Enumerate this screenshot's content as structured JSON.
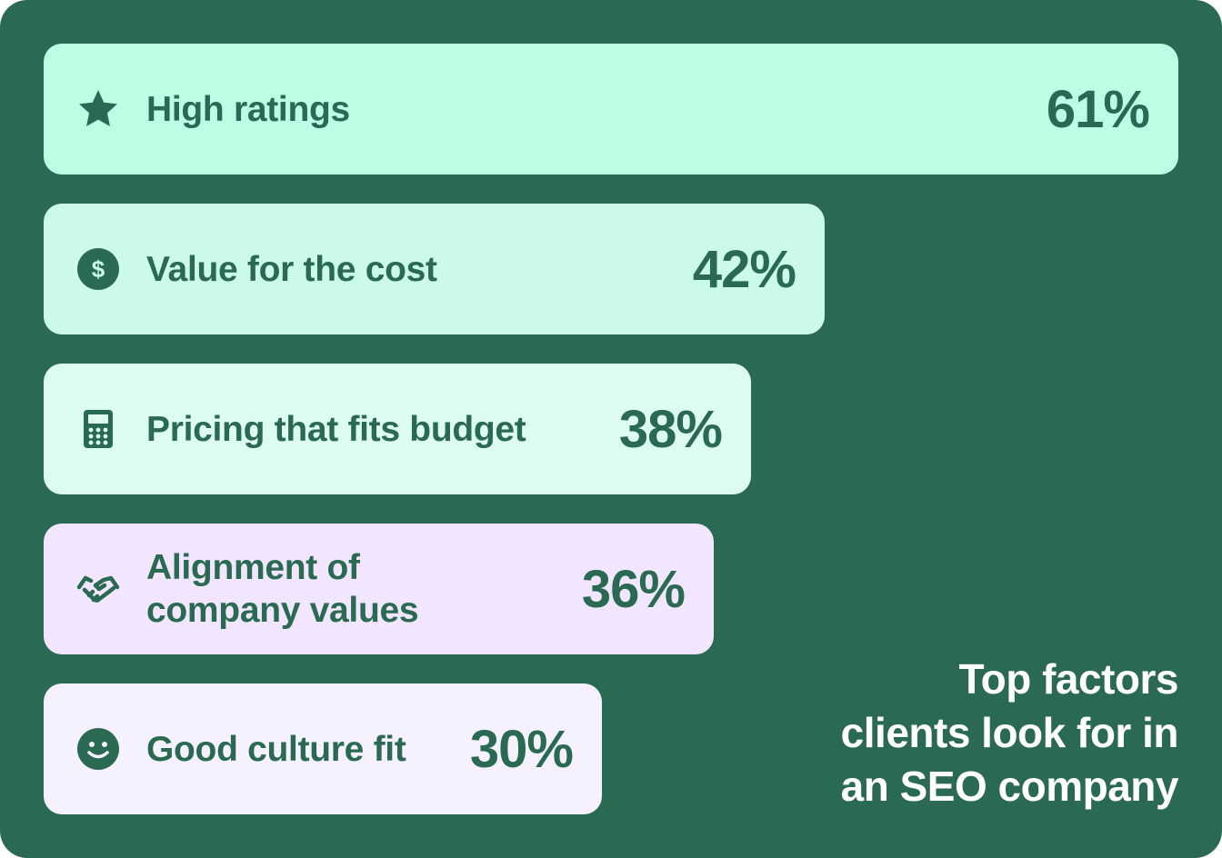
{
  "chart_data": {
    "type": "bar",
    "orientation": "horizontal",
    "title": "Top factors clients look for in an SEO company",
    "title_lines": [
      "Top factors",
      "clients look for in",
      "an SEO company"
    ],
    "categories": [
      "High ratings",
      "Value for the cost",
      "Pricing that fits budget",
      "Alignment of company values",
      "Good culture fit"
    ],
    "values": [
      61,
      42,
      38,
      36,
      30
    ],
    "unit": "%",
    "bars": [
      {
        "label_lines": [
          "High ratings"
        ],
        "value": 61,
        "value_text": "61%",
        "icon": "star-icon",
        "color": "#bdfde3"
      },
      {
        "label_lines": [
          "Value for the cost"
        ],
        "value": 42,
        "value_text": "42%",
        "icon": "dollar-icon",
        "color": "#cbfbe8"
      },
      {
        "label_lines": [
          "Pricing that fits budget"
        ],
        "value": 38,
        "value_text": "38%",
        "icon": "calculator-icon",
        "color": "#ddfcf0"
      },
      {
        "label_lines": [
          "Alignment of",
          "company values"
        ],
        "value": 36,
        "value_text": "36%",
        "icon": "handshake-icon",
        "color": "#f1e6fd"
      },
      {
        "label_lines": [
          "Good culture fit"
        ],
        "value": 30,
        "value_text": "30%",
        "icon": "smiley-icon",
        "color": "#f6f1fe"
      }
    ]
  },
  "colors": {
    "background": "#2a6a52",
    "text_dark": "#2a6a52",
    "text_light": "#ffffff"
  }
}
